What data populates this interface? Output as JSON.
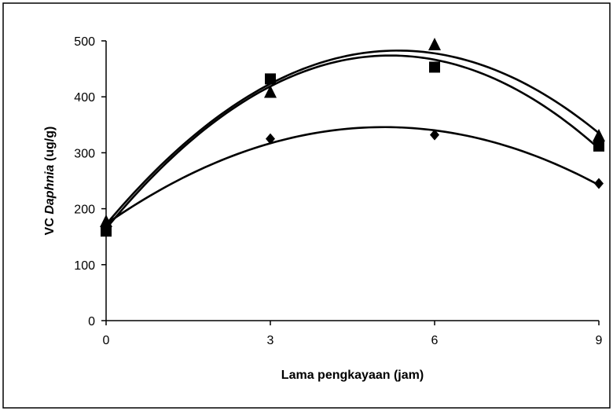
{
  "chart_data": {
    "type": "scatter",
    "xlabel": "Lama pengkayaan (jam)",
    "ylabel_prefix": "VC ",
    "ylabel_italic": "Daphnia",
    "ylabel_suffix": "  (ug/g)",
    "xlim": [
      0,
      9
    ],
    "ylim": [
      0,
      500
    ],
    "x_ticks": [
      0,
      3,
      6,
      9
    ],
    "y_ticks": [
      0,
      100,
      200,
      300,
      400,
      500
    ],
    "grid": false,
    "legend": "none",
    "trendline": "polynomial-2",
    "series": [
      {
        "marker": "diamond",
        "x": [
          0,
          3,
          6,
          9
        ],
        "y": [
          170,
          325,
          332,
          245
        ]
      },
      {
        "marker": "square",
        "x": [
          0,
          3,
          6,
          9
        ],
        "y": [
          160,
          432,
          453,
          312
        ]
      },
      {
        "marker": "triangle",
        "x": [
          0,
          3,
          6,
          9
        ],
        "y": [
          177,
          408,
          493,
          330
        ]
      }
    ],
    "colors": {
      "line": "#000000",
      "marker": "#000000",
      "background": "#ffffff"
    }
  }
}
